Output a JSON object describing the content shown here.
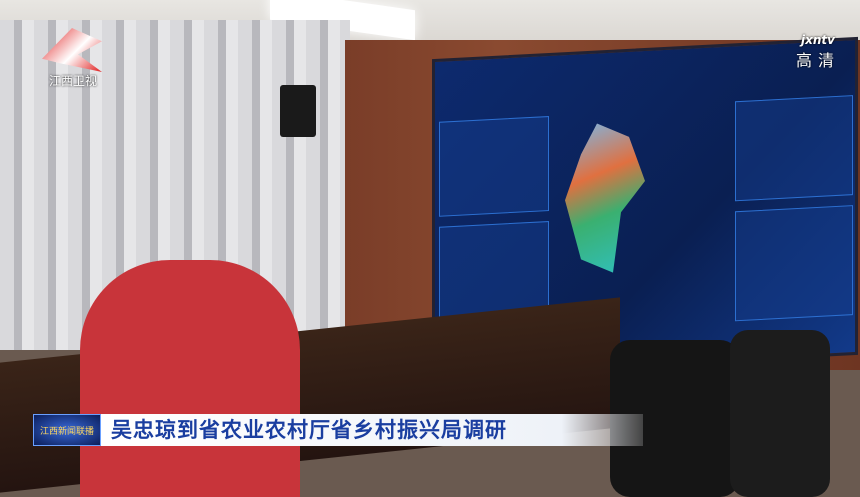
{
  "logo": {
    "text": "江西卫视"
  },
  "watermark": {
    "site": "jxntv",
    "quality": "高清"
  },
  "caption": {
    "program": "江西新闻联播",
    "headline": "吴忠琼到省农业农村厅省乡村振兴局调研"
  },
  "colors": {
    "caption_text": "#1a3ea0",
    "logo_red": "#e01e1e",
    "screen_blue": "#0d2a6e"
  }
}
